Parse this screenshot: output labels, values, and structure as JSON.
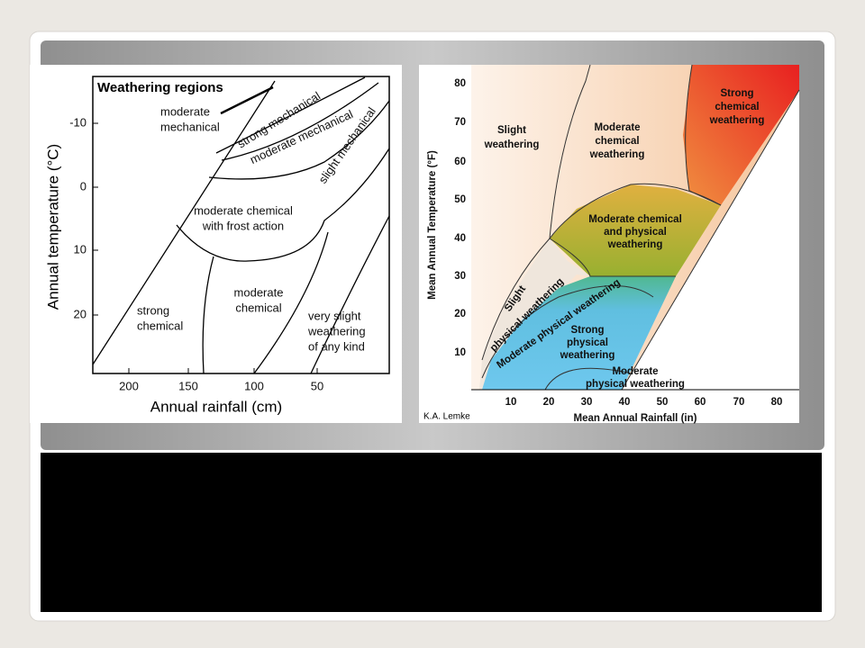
{
  "slide": {
    "left_diagram": {
      "title": "Weathering regions",
      "y_axis_label": "Annual temperature (°C)",
      "x_axis_label": "Annual rainfall (cm)",
      "y_ticks": [
        "-10",
        "0",
        "10",
        "20"
      ],
      "x_ticks": [
        "200",
        "150",
        "100",
        "50"
      ],
      "regions": [
        [
          "moderate",
          "mechanical"
        ],
        [
          "strong mechanical"
        ],
        [
          "moderate  mechanical"
        ],
        [
          "slight  mechanical"
        ],
        [
          "moderate chemical",
          "with frost action"
        ],
        [
          "strong",
          "chemical"
        ],
        [
          "moderate",
          "chemical"
        ],
        [
          "very slight",
          "weathering",
          "of any kind"
        ]
      ]
    },
    "right_diagram": {
      "y_axis_label": "Mean Annual Temperature (°F)",
      "x_axis_label": "Mean Annual Rainfall (in)",
      "credit": "K.A. Lemke",
      "y_ticks": [
        "80",
        "70",
        "60",
        "50",
        "40",
        "30",
        "20",
        "10"
      ],
      "x_ticks": [
        "10",
        "20",
        "30",
        "40",
        "50",
        "60",
        "70",
        "80"
      ],
      "regions": [
        [
          "Slight",
          "weathering"
        ],
        [
          "Moderate",
          "chemical",
          "weathering"
        ],
        [
          "Strong",
          "chemical",
          "weathering"
        ],
        [
          "Moderate chemical",
          "and physical",
          "weathering"
        ],
        [
          "Slight"
        ],
        [
          "physical weathering"
        ],
        [
          "Moderate physical weathering"
        ],
        [
          "Strong",
          "physical",
          "weathering"
        ],
        [
          "Moderate",
          "physical weathering"
        ]
      ]
    }
  }
}
